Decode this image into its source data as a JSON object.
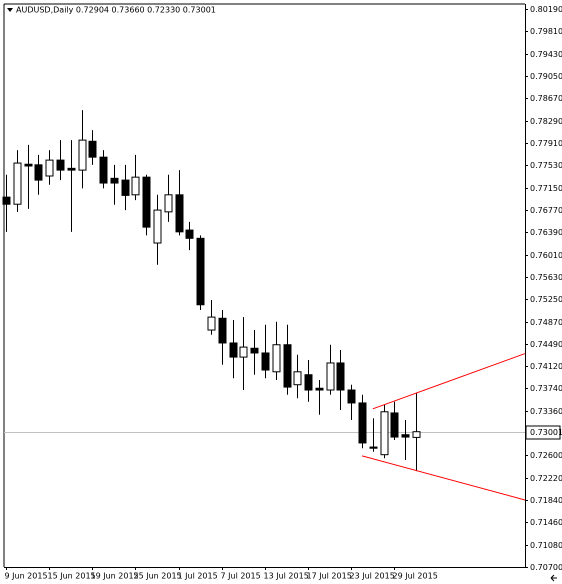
{
  "chart_data": {
    "type": "candlestick",
    "title": "AUDUSD,Daily 0.72904 0.73660 0.72330 0.73001",
    "categories": [
      "9 Jun 2015",
      null,
      null,
      null,
      "15 Jun 2015",
      null,
      null,
      null,
      "19 Jun 2015",
      null,
      null,
      null,
      "25 Jun 2015",
      null,
      null,
      null,
      "1 Jul 2015",
      null,
      null,
      null,
      "7 Jul 2015",
      null,
      null,
      null,
      "13 Jul 2015",
      null,
      null,
      null,
      "17 Jul 2015",
      null,
      null,
      null,
      "23 Jul 2015",
      null,
      null,
      null,
      "29 Jul 2015",
      null,
      null
    ],
    "open": [
      0.7699,
      0.7687,
      0.7755,
      0.7754,
      0.7735,
      0.7762,
      0.7748,
      0.7745,
      0.7794,
      0.7767,
      0.7731,
      0.7728,
      0.7703,
      0.7733,
      0.7621,
      0.7674,
      0.7703,
      0.7643,
      0.7629,
      0.7473,
      0.7493,
      0.7451,
      0.7427,
      0.7442,
      0.7434,
      0.7402,
      0.7448,
      0.738,
      0.7397,
      0.7374,
      0.7371,
      0.7417,
      0.7371,
      0.7349,
      0.7274,
      0.7261,
      0.7332,
      0.7295,
      0.72904
    ],
    "high": [
      0.7737,
      0.7779,
      0.7788,
      0.7771,
      0.7779,
      0.7796,
      0.7796,
      0.7847,
      0.7813,
      0.7779,
      0.7754,
      0.7754,
      0.7771,
      0.7737,
      0.7703,
      0.7737,
      0.7745,
      0.7657,
      0.7634,
      0.7524,
      0.7507,
      0.749,
      0.7495,
      0.7473,
      0.7482,
      0.7487,
      0.7482,
      0.7431,
      0.7422,
      0.7388,
      0.7448,
      0.7439,
      0.738,
      0.7363,
      0.7323,
      0.7346,
      0.7351,
      0.732,
      0.7366
    ],
    "low": [
      0.764,
      0.7674,
      0.7679,
      0.7703,
      0.772,
      0.7728,
      0.764,
      0.7714,
      0.7754,
      0.7714,
      0.7686,
      0.7677,
      0.7694,
      0.7634,
      0.7584,
      0.7657,
      0.7634,
      0.7609,
      0.7507,
      0.7465,
      0.7414,
      0.7391,
      0.7371,
      0.7397,
      0.7391,
      0.7388,
      0.7363,
      0.7357,
      0.7351,
      0.7329,
      0.7363,
      0.7337,
      0.732,
      0.7272,
      0.7266,
      0.7255,
      0.7286,
      0.7252,
      0.7233
    ],
    "close": [
      0.7687,
      0.7757,
      0.7752,
      0.7728,
      0.7762,
      0.7745,
      0.7745,
      0.7796,
      0.7767,
      0.7723,
      0.7723,
      0.7702,
      0.7733,
      0.7648,
      0.7677,
      0.7703,
      0.764,
      0.7629,
      0.7516,
      0.7495,
      0.7451,
      0.7427,
      0.7444,
      0.7434,
      0.7405,
      0.7448,
      0.7376,
      0.7402,
      0.7371,
      0.7371,
      0.7417,
      0.7371,
      0.7349,
      0.7281,
      0.7272,
      0.7334,
      0.7291,
      0.7291,
      0.73001
    ],
    "up_color": "#ffffff",
    "down_color": "#000000",
    "ylim": [
      0.707,
      0.8019
    ],
    "yticks": [
      {
        "value": 0.8019,
        "label": "0.80190"
      },
      {
        "value": 0.7981,
        "label": "0.79810"
      },
      {
        "value": 0.7943,
        "label": "0.79430"
      },
      {
        "value": 0.7905,
        "label": "0.79050"
      },
      {
        "value": 0.7867,
        "label": "0.78670"
      },
      {
        "value": 0.7829,
        "label": "0.78290"
      },
      {
        "value": 0.7791,
        "label": "0.77910"
      },
      {
        "value": 0.7753,
        "label": "0.77530"
      },
      {
        "value": 0.7715,
        "label": "0.77150"
      },
      {
        "value": 0.7677,
        "label": "0.76770"
      },
      {
        "value": 0.7639,
        "label": "0.76390"
      },
      {
        "value": 0.7601,
        "label": "0.76010"
      },
      {
        "value": 0.7563,
        "label": "0.75630"
      },
      {
        "value": 0.7525,
        "label": "0.75250"
      },
      {
        "value": 0.7487,
        "label": "0.74870"
      },
      {
        "value": 0.7449,
        "label": "0.74490"
      },
      {
        "value": 0.7412,
        "label": "0.74120"
      },
      {
        "value": 0.7374,
        "label": "0.73740"
      },
      {
        "value": 0.7336,
        "label": "0.73360"
      },
      {
        "value": 0.726,
        "label": "0.72600"
      },
      {
        "value": 0.7222,
        "label": "0.72220"
      },
      {
        "value": 0.7184,
        "label": "0.71840"
      },
      {
        "value": 0.7146,
        "label": "0.71460"
      },
      {
        "value": 0.7108,
        "label": "0.71080"
      },
      {
        "value": 0.707,
        "label": "0.70700"
      }
    ],
    "price_line_color": "#c0c0c0",
    "trendlines": [
      {
        "color": "#ff0000",
        "values": [
          0.7339,
          0.7433
        ]
      },
      {
        "color": "#ff0000",
        "values": [
          0.7259,
          0.7184
        ]
      }
    ]
  }
}
